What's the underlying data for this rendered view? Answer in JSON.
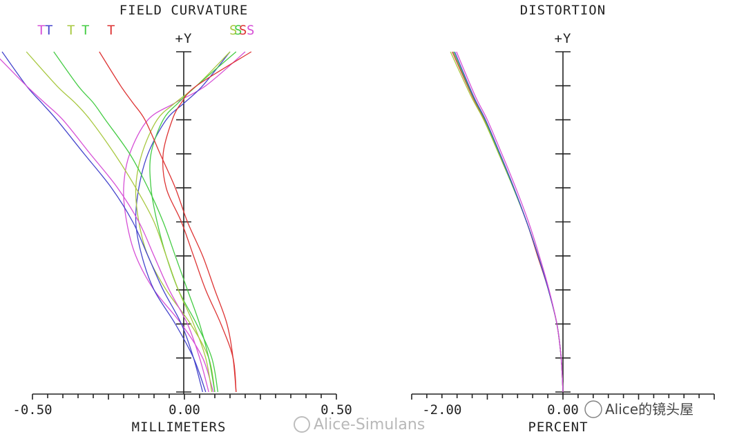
{
  "watermarks": {
    "left": "Alice-Simulans",
    "right": "Alice的镜头屋"
  },
  "chart_data": [
    {
      "type": "line",
      "title": "FIELD CURVATURE",
      "xlabel": "MILLIMETERS",
      "ylabel": "+Y",
      "xlim": [
        -0.5,
        0.5
      ],
      "ylim": [
        0,
        1
      ],
      "x_tick_labels": [
        "-0.50",
        "0.00",
        "0.50"
      ],
      "x_tick_values": [
        -0.5,
        0.0,
        0.5
      ],
      "legend": [
        {
          "label": "T",
          "color": "#d64fd6"
        },
        {
          "label": "T",
          "color": "#4444cc"
        },
        {
          "label": "T",
          "color": "#a8c840"
        },
        {
          "label": "T",
          "color": "#44cc44"
        },
        {
          "label": "T",
          "color": "#dd3333"
        },
        {
          "label": "S",
          "color": "#a8c840"
        },
        {
          "label": "S",
          "color": "#44cc44"
        },
        {
          "label": "S",
          "color": "#dd3333"
        },
        {
          "label": "S",
          "color": "#d64fd6"
        }
      ],
      "series": [
        {
          "color": "#d64fd6",
          "x": [
            0.095,
            0.06,
            -0.01,
            -0.1,
            -0.16,
            -0.19,
            -0.2,
            -0.18,
            -0.12,
            -0.03,
            0.07,
            0.2
          ],
          "y": [
            0.0,
            0.1,
            0.2,
            0.3,
            0.4,
            0.5,
            0.6,
            0.7,
            0.8,
            0.85,
            0.9,
            1.0
          ]
        },
        {
          "color": "#4444cc",
          "x": [
            0.07,
            0.03,
            -0.03,
            -0.1,
            -0.14,
            -0.16,
            -0.15,
            -0.12,
            -0.06,
            0.0,
            0.06,
            0.15
          ],
          "y": [
            0.0,
            0.1,
            0.2,
            0.3,
            0.4,
            0.5,
            0.6,
            0.7,
            0.8,
            0.85,
            0.9,
            1.0
          ]
        },
        {
          "color": "#a8c840",
          "x": [
            0.1,
            0.08,
            0.02,
            -0.06,
            -0.12,
            -0.15,
            -0.16,
            -0.14,
            -0.09,
            -0.03,
            0.04,
            0.15
          ],
          "y": [
            0.0,
            0.1,
            0.2,
            0.3,
            0.4,
            0.5,
            0.6,
            0.7,
            0.8,
            0.85,
            0.9,
            1.0
          ]
        },
        {
          "color": "#44cc44",
          "x": [
            0.11,
            0.09,
            0.04,
            -0.02,
            -0.06,
            -0.09,
            -0.11,
            -0.11,
            -0.07,
            -0.02,
            0.04,
            0.17
          ],
          "y": [
            0.0,
            0.1,
            0.2,
            0.3,
            0.4,
            0.5,
            0.6,
            0.7,
            0.8,
            0.85,
            0.9,
            1.0
          ]
        },
        {
          "color": "#dd3333",
          "x": [
            0.17,
            0.16,
            0.12,
            0.07,
            0.03,
            -0.01,
            -0.06,
            -0.07,
            -0.04,
            -0.01,
            0.04,
            0.22
          ],
          "y": [
            0.0,
            0.1,
            0.2,
            0.3,
            0.4,
            0.5,
            0.6,
            0.7,
            0.8,
            0.85,
            0.9,
            1.0
          ]
        },
        {
          "color": "#4444cc",
          "x": [
            0.06,
            0.03,
            -0.01,
            -0.07,
            -0.12,
            -0.17,
            -0.24,
            -0.33,
            -0.42,
            -0.47,
            -0.52,
            -0.6
          ],
          "y": [
            0.0,
            0.1,
            0.2,
            0.3,
            0.4,
            0.5,
            0.6,
            0.7,
            0.8,
            0.85,
            0.9,
            1.0
          ]
        },
        {
          "color": "#d64fd6",
          "x": [
            0.08,
            0.05,
            0.01,
            -0.05,
            -0.1,
            -0.15,
            -0.22,
            -0.31,
            -0.4,
            -0.46,
            -0.52,
            -0.63
          ],
          "y": [
            0.0,
            0.1,
            0.2,
            0.3,
            0.4,
            0.5,
            0.6,
            0.7,
            0.8,
            0.85,
            0.9,
            1.0
          ]
        },
        {
          "color": "#a8c840",
          "x": [
            0.09,
            0.07,
            0.03,
            -0.02,
            -0.06,
            -0.1,
            -0.16,
            -0.23,
            -0.31,
            -0.36,
            -0.42,
            -0.52
          ],
          "y": [
            0.0,
            0.1,
            0.2,
            0.3,
            0.4,
            0.5,
            0.6,
            0.7,
            0.8,
            0.85,
            0.9,
            1.0
          ]
        },
        {
          "color": "#44cc44",
          "x": [
            0.1,
            0.08,
            0.05,
            0.01,
            -0.03,
            -0.07,
            -0.12,
            -0.18,
            -0.26,
            -0.3,
            -0.35,
            -0.43
          ],
          "y": [
            0.0,
            0.1,
            0.2,
            0.3,
            0.4,
            0.5,
            0.6,
            0.7,
            0.8,
            0.85,
            0.9,
            1.0
          ]
        },
        {
          "color": "#dd3333",
          "x": [
            0.17,
            0.16,
            0.14,
            0.1,
            0.06,
            0.01,
            -0.03,
            -0.08,
            -0.13,
            -0.17,
            -0.21,
            -0.28
          ],
          "y": [
            0.0,
            0.1,
            0.2,
            0.3,
            0.4,
            0.5,
            0.6,
            0.7,
            0.8,
            0.85,
            0.9,
            1.0
          ]
        }
      ]
    },
    {
      "type": "line",
      "title": "DISTORTION",
      "xlabel": "PERCENT",
      "ylabel": "+Y",
      "xlim": [
        -2.5,
        2.5
      ],
      "ylim": [
        0,
        1
      ],
      "x_tick_labels": [
        "-2.00",
        "0.00"
      ],
      "x_tick_values": [
        -2.0,
        0.0
      ],
      "series": [
        {
          "color": "#dd3333",
          "x": [
            0.0,
            -0.03,
            -0.1,
            -0.24,
            -0.42,
            -0.6,
            -0.82,
            -1.06,
            -1.3,
            -1.5,
            -1.83
          ],
          "y": [
            0.0,
            0.1,
            0.2,
            0.3,
            0.4,
            0.5,
            0.6,
            0.7,
            0.8,
            0.87,
            1.0
          ]
        },
        {
          "color": "#a8c840",
          "x": [
            0.0,
            -0.03,
            -0.1,
            -0.24,
            -0.41,
            -0.6,
            -0.82,
            -1.06,
            -1.31,
            -1.52,
            -1.86
          ],
          "y": [
            0.0,
            0.1,
            0.2,
            0.3,
            0.4,
            0.5,
            0.6,
            0.7,
            0.8,
            0.87,
            1.0
          ]
        },
        {
          "color": "#44cc44",
          "x": [
            0.0,
            -0.03,
            -0.1,
            -0.24,
            -0.41,
            -0.6,
            -0.82,
            -1.05,
            -1.29,
            -1.49,
            -1.81
          ],
          "y": [
            0.0,
            0.1,
            0.2,
            0.3,
            0.4,
            0.5,
            0.6,
            0.7,
            0.8,
            0.87,
            1.0
          ]
        },
        {
          "color": "#4444cc",
          "x": [
            0.0,
            -0.03,
            -0.1,
            -0.24,
            -0.41,
            -0.6,
            -0.81,
            -1.04,
            -1.28,
            -1.48,
            -1.79
          ],
          "y": [
            0.0,
            0.1,
            0.2,
            0.3,
            0.4,
            0.5,
            0.6,
            0.7,
            0.8,
            0.87,
            1.0
          ]
        },
        {
          "color": "#d64fd6",
          "x": [
            0.0,
            -0.03,
            -0.1,
            -0.23,
            -0.39,
            -0.57,
            -0.78,
            -1.01,
            -1.25,
            -1.45,
            -1.76
          ],
          "y": [
            0.0,
            0.1,
            0.2,
            0.3,
            0.4,
            0.5,
            0.6,
            0.7,
            0.8,
            0.87,
            1.0
          ]
        }
      ]
    }
  ]
}
